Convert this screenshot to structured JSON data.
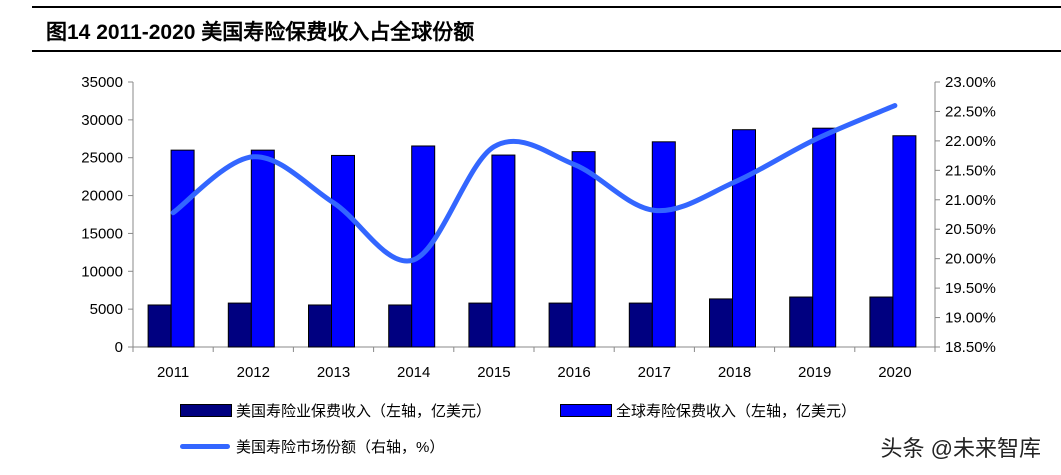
{
  "title": "图14 2011-2020 美国寿险保费收入占全球份额",
  "watermark": "头条 @未来智库",
  "chart_data": {
    "type": "bar+line",
    "title": "图14 2011-2020 美国寿险保费收入占全球份额",
    "categories": [
      "2011",
      "2012",
      "2013",
      "2014",
      "2015",
      "2016",
      "2017",
      "2018",
      "2019",
      "2020"
    ],
    "ylim_left": [
      0,
      35000
    ],
    "yticks_left": [
      "0",
      "5000",
      "10000",
      "15000",
      "20000",
      "25000",
      "30000",
      "35000"
    ],
    "ylim_right": [
      18.5,
      23.0
    ],
    "yticks_right": [
      "18.50%",
      "19.00%",
      "19.50%",
      "20.00%",
      "20.50%",
      "21.00%",
      "21.50%",
      "22.00%",
      "22.50%",
      "23.00%"
    ],
    "series": [
      {
        "name": "美国寿险业保费收入（左轴，亿美元）",
        "type": "bar",
        "axis": "left",
        "color": "#000080",
        "values": [
          5550,
          5800,
          5550,
          5550,
          5800,
          5800,
          5800,
          6350,
          6600,
          6600
        ]
      },
      {
        "name": "全球寿险保费收入（左轴，亿美元）",
        "type": "bar",
        "axis": "left",
        "color": "#0000ff",
        "values": [
          26000,
          26000,
          25300,
          26550,
          25350,
          25800,
          27100,
          28700,
          28900,
          27900
        ]
      },
      {
        "name": "美国寿险市场份额（右轴，%）",
        "type": "line",
        "axis": "right",
        "color": "#3366ff",
        "smooth": true,
        "values": [
          20.78,
          21.73,
          20.95,
          19.98,
          21.9,
          21.6,
          20.82,
          21.3,
          22.02,
          22.6
        ]
      }
    ],
    "grid": false,
    "legend": "bottom"
  }
}
